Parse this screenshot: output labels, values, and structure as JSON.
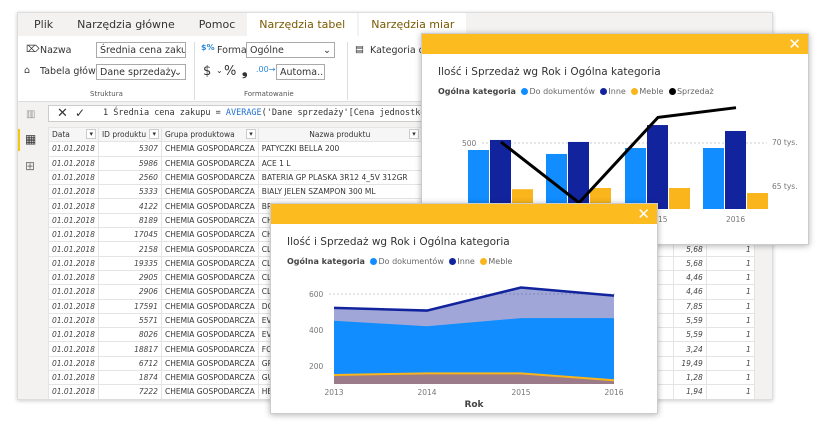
{
  "tabs": [
    "Plik",
    "Narzędzia główne",
    "Pomoc",
    "Narzędzia tabel",
    "Narzędzia miar"
  ],
  "ribbon": {
    "name_label": "Nazwa",
    "name_value": "Średnia cena zakupu",
    "home_table_label": "Tabela główna",
    "home_table_value": "Dane sprzedaży",
    "structure_group": "Struktura",
    "format_label": "Format",
    "format_value": "Ogólne",
    "currency": "$",
    "percent": "%",
    "comma": "❟",
    "decimals_value": "Automa...",
    "formatting_group": "Formatowanie",
    "data_category_label": "Kategoria danych"
  },
  "formula": {
    "line": "1",
    "text_before": "Średnia cena zakupu = ",
    "func": "AVERAGE",
    "text_after": "('Dane sprzedaży'[Cena jednostkowa zakupu])"
  },
  "table": {
    "columns": [
      "Data",
      "ID produktu",
      "Grupa produktowa",
      "Nazwa produktu",
      "Sprz"
    ],
    "rows": [
      [
        "01.01.2018",
        "5307",
        "CHEMIA GOSPODARCZA",
        "PATYCZKI BELLA 200",
        "",
        ""
      ],
      [
        "01.01.2018",
        "5986",
        "CHEMIA GOSPODARCZA",
        "ACE 1 L",
        "",
        ""
      ],
      [
        "01.01.2018",
        "2560",
        "CHEMIA GOSPODARCZA",
        "BATERIA GP PLASKA 3R12 4_5V  312GR",
        "",
        ""
      ],
      [
        "01.01.2018",
        "5333",
        "CHEMIA GOSPODARCZA",
        "BIALY JELEN SZAMPON 300 ML",
        "",
        ""
      ],
      [
        "01.01.2018",
        "4122",
        "CHEMIA GOSPODARCZA",
        "BREF KU",
        "",
        ""
      ],
      [
        "01.01.2018",
        "8189",
        "CHEMIA GOSPODARCZA",
        "CHUSTE",
        "",
        ""
      ],
      [
        "01.01.2018",
        "17045",
        "CHEMIA GOSPODARCZA",
        "CHUSTE",
        "",
        ""
      ],
      [
        "01.01.2018",
        "2158",
        "CHEMIA GOSPODARCZA",
        "CLIN DO",
        "5,68",
        "1"
      ],
      [
        "01.01.2018",
        "19335",
        "CHEMIA GOSPODARCZA",
        "CLIN LE",
        "5,68",
        "1"
      ],
      [
        "01.01.2018",
        "2905",
        "CHEMIA GOSPODARCZA",
        "CLIN ZA",
        "4,46",
        "1"
      ],
      [
        "01.01.2018",
        "2906",
        "CHEMIA GOSPODARCZA",
        "CLIN ZA",
        "4,46",
        "1"
      ],
      [
        "01.01.2018",
        "17591",
        "CHEMIA GOSPODARCZA",
        "DOMEST",
        "7,85",
        "1"
      ],
      [
        "01.01.2018",
        "5571",
        "CHEMIA GOSPODARCZA",
        "EVA SIM",
        "5,59",
        "1"
      ],
      [
        "01.01.2018",
        "8026",
        "CHEMIA GOSPODARCZA",
        "EVA SIM",
        "5,59",
        "1"
      ],
      [
        "01.01.2018",
        "18817",
        "CHEMIA GOSPODARCZA",
        "FOLIA A",
        "3,24",
        "1"
      ],
      [
        "01.01.2018",
        "6712",
        "CHEMIA GOSPODARCZA",
        "GRA PO",
        "19,49",
        "1"
      ],
      [
        "01.01.2018",
        "1874",
        "CHEMIA GOSPODARCZA",
        "GUMA",
        "1,28",
        "1"
      ],
      [
        "01.01.2018",
        "7222",
        "CHEMIA GOSPODARCZA",
        "HELP 30",
        "1,94",
        "1"
      ]
    ]
  },
  "colors": {
    "accent": "#fcbc1f",
    "do_dokumentow": "#118dff",
    "inne": "#12239e",
    "meble": "#f9b51b",
    "sprzedaz": "#000000"
  },
  "chart_data": [
    {
      "type": "bar+line",
      "title": "Ilość i Sprzedaż wg Rok i Ogólna kategoria",
      "legend_title": "Ogólna kategoria",
      "legend_position": "top-left",
      "categories": [
        "2013",
        "2014",
        "2015",
        "2016"
      ],
      "visible_x_ticks": [
        "15",
        "2016"
      ],
      "series": [
        {
          "name": "Do dokumentów",
          "values": [
            447,
            417,
            462,
            462
          ]
        },
        {
          "name": "Inne",
          "values": [
            523,
            508,
            636,
            591
          ]
        },
        {
          "name": "Meble",
          "values": [
            150,
            159,
            159,
            121
          ]
        },
        {
          "name": "Sprzedaż",
          "axis": "right",
          "values": [
            70000,
            63100,
            72800,
            73900
          ]
        }
      ],
      "y_ticks": [
        "500"
      ],
      "y2_ticks": [
        "70 tys.",
        "65 tys."
      ]
    },
    {
      "type": "area",
      "title": "Ilość i Sprzedaż wg Rok i Ogólna kategoria",
      "legend_title": "Ogólna kategoria",
      "legend_position": "top-left",
      "xlabel": "Rok",
      "categories": [
        "2013",
        "2014",
        "2015",
        "2016"
      ],
      "series": [
        {
          "name": "Do dokumentów",
          "values": [
            447,
            417,
            462,
            462
          ]
        },
        {
          "name": "Inne",
          "values": [
            523,
            508,
            636,
            591
          ]
        },
        {
          "name": "Meble",
          "values": [
            150,
            159,
            159,
            121
          ]
        }
      ],
      "y_ticks": [
        "600",
        "400",
        "200"
      ],
      "ylim": [
        100,
        650
      ]
    }
  ]
}
